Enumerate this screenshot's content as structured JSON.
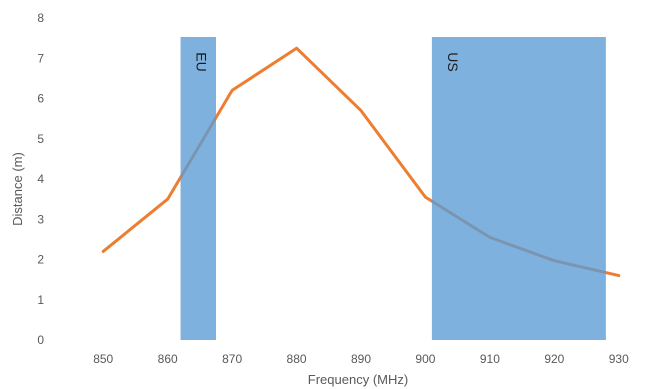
{
  "chart_data": {
    "type": "line",
    "title": "",
    "xlabel": "Frequency (MHz)",
    "ylabel": "Distance (m)",
    "xlim": [
      845,
      935
    ],
    "ylim": [
      0,
      8
    ],
    "x_ticks": [
      850,
      860,
      870,
      880,
      890,
      900,
      910,
      920,
      930
    ],
    "y_ticks": [
      0,
      1,
      2,
      3,
      4,
      5,
      6,
      7,
      8
    ],
    "grid": false,
    "legend": "none",
    "series": [
      {
        "color": "#ED7D31",
        "x": [
          850,
          860,
          870,
          880,
          890,
          900,
          910,
          920,
          930
        ],
        "y": [
          2.2,
          3.5,
          6.2,
          7.25,
          5.7,
          3.55,
          2.55,
          1.97,
          1.6
        ]
      }
    ],
    "bands": [
      {
        "label": "EU",
        "x_start": 862,
        "x_end": 867.5,
        "color": "#5B9BD5",
        "opacity": 0.78
      },
      {
        "label": "US",
        "x_start": 901,
        "x_end": 928,
        "color": "#5B9BD5",
        "opacity": 0.78
      }
    ]
  }
}
